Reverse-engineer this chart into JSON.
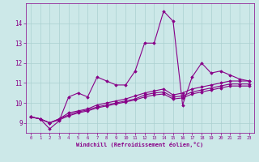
{
  "x": [
    0,
    1,
    2,
    3,
    4,
    5,
    6,
    7,
    8,
    9,
    10,
    11,
    12,
    13,
    14,
    15,
    16,
    17,
    18,
    19,
    20,
    21,
    22,
    23
  ],
  "line1": [
    9.3,
    9.2,
    8.7,
    9.1,
    10.3,
    10.5,
    10.3,
    11.3,
    11.1,
    10.9,
    10.9,
    11.6,
    13.0,
    13.0,
    14.6,
    14.1,
    9.9,
    11.3,
    12.0,
    11.5,
    11.6,
    11.4,
    11.2,
    11.1
  ],
  "line2": [
    9.3,
    9.2,
    9.0,
    9.2,
    9.5,
    9.6,
    9.7,
    9.9,
    10.0,
    10.1,
    10.2,
    10.35,
    10.5,
    10.6,
    10.7,
    10.4,
    10.5,
    10.7,
    10.8,
    10.9,
    11.0,
    11.1,
    11.1,
    11.1
  ],
  "line3": [
    9.3,
    9.2,
    9.0,
    9.2,
    9.4,
    9.55,
    9.65,
    9.8,
    9.9,
    10.0,
    10.1,
    10.2,
    10.4,
    10.5,
    10.55,
    10.3,
    10.35,
    10.55,
    10.65,
    10.75,
    10.85,
    10.95,
    10.95,
    10.95
  ],
  "line4": [
    9.3,
    9.2,
    9.0,
    9.15,
    9.35,
    9.5,
    9.6,
    9.75,
    9.85,
    9.95,
    10.05,
    10.15,
    10.3,
    10.4,
    10.45,
    10.2,
    10.25,
    10.45,
    10.55,
    10.65,
    10.75,
    10.85,
    10.85,
    10.85
  ],
  "color": "#880088",
  "bg_color": "#cce8e8",
  "grid_color": "#aad0d0",
  "xlabel": "Windchill (Refroidissement éolien,°C)",
  "ylim": [
    8.5,
    15.0
  ],
  "xlim": [
    -0.5,
    23.5
  ],
  "yticks": [
    9,
    10,
    11,
    12,
    13,
    14
  ],
  "xticks": [
    0,
    1,
    2,
    3,
    4,
    5,
    6,
    7,
    8,
    9,
    10,
    11,
    12,
    13,
    14,
    15,
    16,
    17,
    18,
    19,
    20,
    21,
    22,
    23
  ],
  "marker": "D",
  "markersize": 1.8,
  "linewidth": 0.8
}
